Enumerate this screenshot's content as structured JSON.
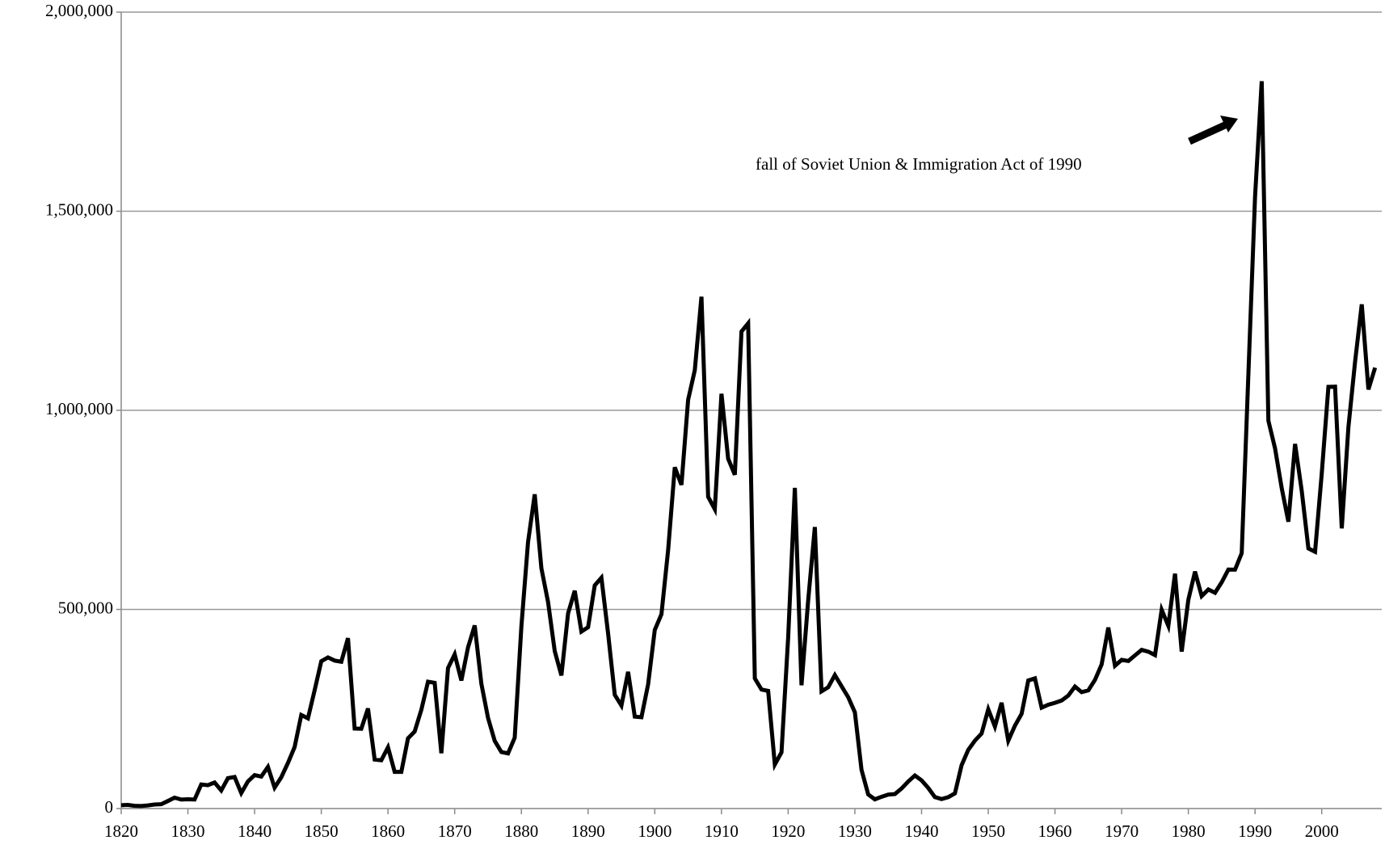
{
  "chart_data": {
    "type": "line",
    "annotation": "fall of Soviet Union & Immigration Act of 1990",
    "x": [
      1820,
      1821,
      1822,
      1823,
      1824,
      1825,
      1826,
      1827,
      1828,
      1829,
      1830,
      1831,
      1832,
      1833,
      1834,
      1835,
      1836,
      1837,
      1838,
      1839,
      1840,
      1841,
      1842,
      1843,
      1844,
      1845,
      1846,
      1847,
      1848,
      1849,
      1850,
      1851,
      1852,
      1853,
      1854,
      1855,
      1856,
      1857,
      1858,
      1859,
      1860,
      1861,
      1862,
      1863,
      1864,
      1865,
      1866,
      1867,
      1868,
      1869,
      1870,
      1871,
      1872,
      1873,
      1874,
      1875,
      1876,
      1877,
      1878,
      1879,
      1880,
      1881,
      1882,
      1883,
      1884,
      1885,
      1886,
      1887,
      1888,
      1889,
      1890,
      1891,
      1892,
      1893,
      1894,
      1895,
      1896,
      1897,
      1898,
      1899,
      1900,
      1901,
      1902,
      1903,
      1904,
      1905,
      1906,
      1907,
      1908,
      1909,
      1910,
      1911,
      1912,
      1913,
      1914,
      1915,
      1916,
      1917,
      1918,
      1919,
      1920,
      1921,
      1922,
      1923,
      1924,
      1925,
      1926,
      1927,
      1928,
      1929,
      1930,
      1931,
      1932,
      1933,
      1934,
      1935,
      1936,
      1937,
      1938,
      1939,
      1940,
      1941,
      1942,
      1943,
      1944,
      1945,
      1946,
      1947,
      1948,
      1949,
      1950,
      1951,
      1952,
      1953,
      1954,
      1955,
      1956,
      1957,
      1958,
      1959,
      1960,
      1961,
      1962,
      1963,
      1964,
      1965,
      1966,
      1967,
      1968,
      1969,
      1970,
      1971,
      1972,
      1973,
      1974,
      1975,
      1976,
      1977,
      1978,
      1979,
      1980,
      1981,
      1982,
      1983,
      1984,
      1985,
      1986,
      1987,
      1988,
      1989,
      1990,
      1991,
      1992,
      1993,
      1994,
      1995,
      1996,
      1997,
      1998,
      1999,
      2000,
      2001,
      2002,
      2003,
      2004,
      2005,
      2006,
      2007,
      2008
    ],
    "values": [
      8385,
      9127,
      6911,
      6354,
      7912,
      10199,
      10837,
      18875,
      27382,
      22520,
      23322,
      22633,
      60482,
      58640,
      65365,
      45374,
      76242,
      79340,
      38914,
      68069,
      84066,
      80289,
      104565,
      52496,
      78615,
      114371,
      154416,
      234968,
      226527,
      297024,
      369980,
      379466,
      371603,
      368645,
      427833,
      200877,
      200436,
      251306,
      123126,
      121282,
      153640,
      91918,
      91985,
      176282,
      193418,
      248120,
      318568,
      315722,
      138840,
      352768,
      387203,
      321350,
      404806,
      459803,
      313339,
      227498,
      169986,
      141857,
      138469,
      177826,
      457257,
      669431,
      788992,
      603322,
      518592,
      395346,
      334203,
      490109,
      546889,
      444427,
      455302,
      560319,
      579663,
      439730,
      285631,
      258536,
      343267,
      230832,
      229299,
      311715,
      448572,
      487918,
      648743,
      857046,
      812870,
      1026499,
      1100735,
      1285349,
      782870,
      751786,
      1041570,
      878587,
      838172,
      1197892,
      1218480,
      326700,
      298826,
      295403,
      110618,
      141132,
      430001,
      805228,
      309556,
      522919,
      706896,
      294314,
      304488,
      335175,
      307255,
      279678,
      241700,
      97139,
      35576,
      23068,
      29470,
      34956,
      36329,
      50244,
      67895,
      82998,
      70756,
      51776,
      28781,
      23725,
      28551,
      38119,
      108721,
      147292,
      170570,
      188317,
      249187,
      205717,
      265520,
      170434,
      208177,
      237790,
      321625,
      326867,
      253265,
      260686,
      265398,
      271344,
      283763,
      306260,
      292248,
      296697,
      323040,
      361972,
      454448,
      358579,
      373326,
      370478,
      384685,
      398515,
      393919,
      385378,
      499093,
      458755,
      589810,
      394244,
      524295,
      595014,
      533624,
      550052,
      541811,
      568149,
      600027,
      599889,
      641346,
      1090172,
      1535872,
      1826595,
      973977,
      904292,
      804416,
      720177,
      915560,
      797847,
      653206,
      644787,
      841002,
      1058902,
      1059356,
      703542,
      957883,
      1122257,
      1266129,
      1052415,
      1107126
    ],
    "color": "#000000",
    "xlim": [
      1820,
      2009
    ],
    "xticks": [
      1820,
      1830,
      1840,
      1850,
      1860,
      1870,
      1880,
      1890,
      1900,
      1910,
      1920,
      1930,
      1940,
      1950,
      1960,
      1970,
      1980,
      1990,
      2000
    ],
    "ylim": [
      0,
      2000000
    ],
    "yticks": [
      0,
      {
        "value": 500000,
        "label": "500,000"
      },
      {
        "value": 1000000,
        "label": "1,000,000"
      },
      {
        "value": 1500000,
        "label": "1,500,000"
      },
      {
        "value": 2000000,
        "label": "2,000,000"
      }
    ],
    "grid": true
  }
}
